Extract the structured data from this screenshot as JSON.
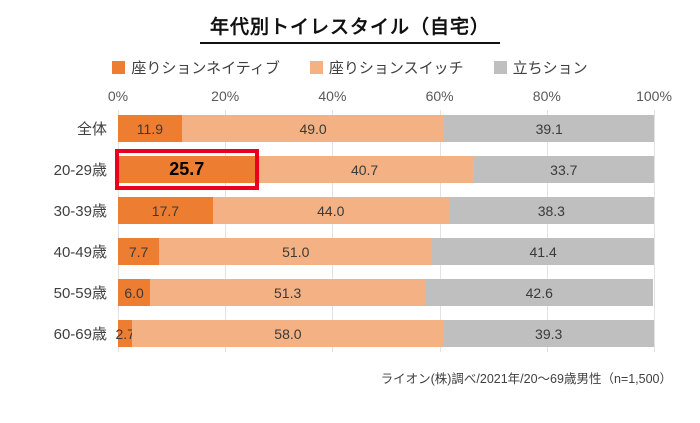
{
  "title": "年代別トイレスタイル（自宅）",
  "footer": "ライオン(株)調べ/2021年/20～69歳男性（n=1,500）",
  "chart_data": {
    "type": "bar",
    "orientation": "horizontal",
    "stacked": true,
    "title": "年代別トイレスタイル（自宅）",
    "categories": [
      "全体",
      "20-29歳",
      "30-39歳",
      "40-49歳",
      "50-59歳",
      "60-69歳"
    ],
    "series": [
      {
        "name": "座りションネイティブ",
        "color": "#ed7d31",
        "values": [
          11.9,
          25.7,
          17.7,
          7.7,
          6.0,
          2.7
        ]
      },
      {
        "name": "座りションスイッチ",
        "color": "#f4b183",
        "values": [
          49.0,
          40.7,
          44.0,
          51.0,
          51.3,
          58.0
        ]
      },
      {
        "name": "立ちション",
        "color": "#bfbfbf",
        "values": [
          39.1,
          33.7,
          38.3,
          41.4,
          42.6,
          39.3
        ]
      }
    ],
    "x_ticks": [
      "0%",
      "20%",
      "40%",
      "60%",
      "80%",
      "100%"
    ],
    "xlim": [
      0,
      100
    ],
    "grid": true,
    "legend_position": "top",
    "highlight": {
      "category": "20-29歳",
      "series_index": 0,
      "color": "#e8001e"
    },
    "source_note": "ライオン(株)調べ/2021年/20～69歳男性（n=1,500）"
  }
}
